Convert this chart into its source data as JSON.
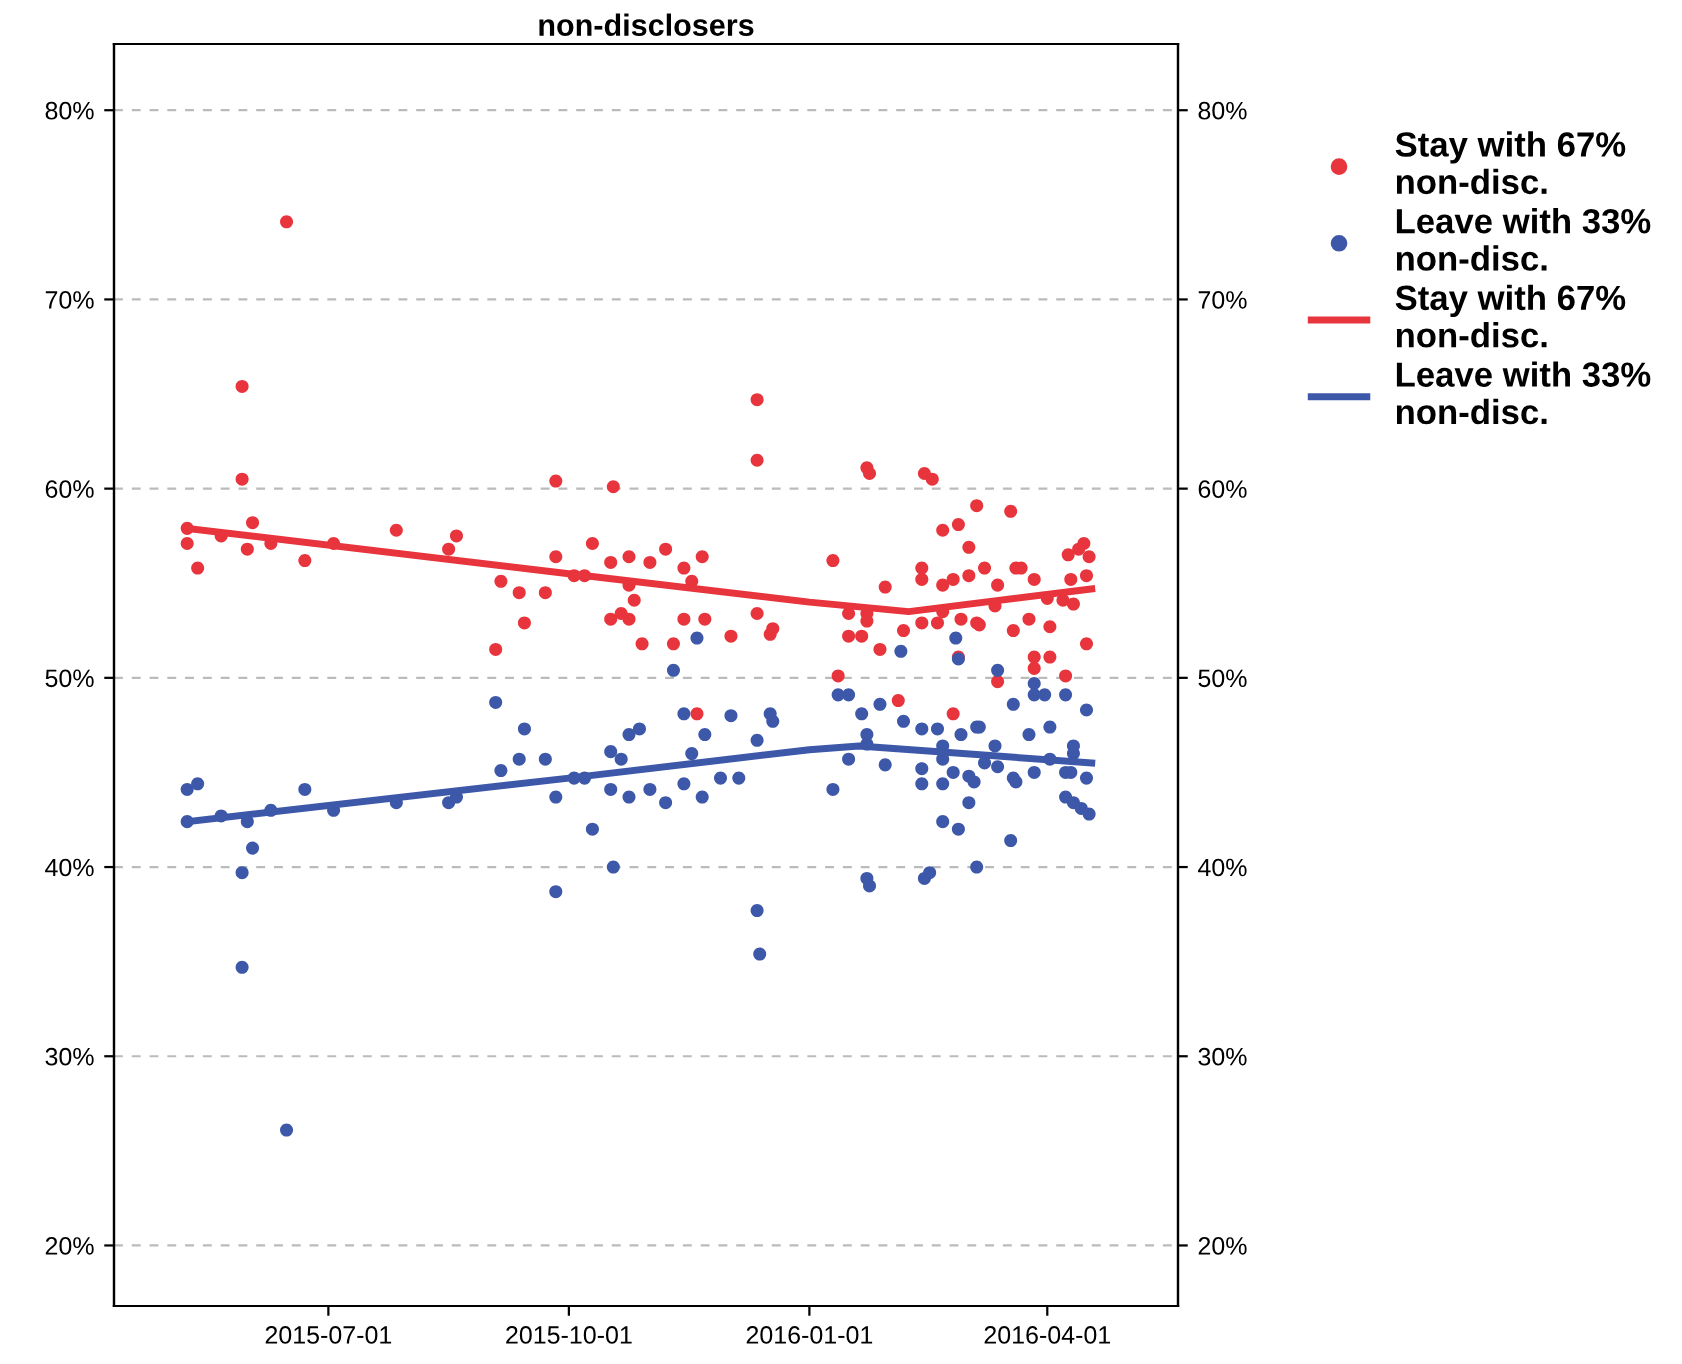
{
  "chart_data": {
    "type": "scatter",
    "title": "non-disclosers",
    "xlim": [
      "2015-04-10",
      "2016-05-21"
    ],
    "xticks": [
      {
        "value": "2015-07-01",
        "label": "2015-07-01"
      },
      {
        "value": "2015-10-01",
        "label": "2015-10-01"
      },
      {
        "value": "2016-01-01",
        "label": "2016-01-01"
      },
      {
        "value": "2016-04-01",
        "label": "2016-04-01"
      }
    ],
    "ylim": [
      16.8,
      83.5
    ],
    "yticks": [
      {
        "value": 20,
        "label": "20%"
      },
      {
        "value": 30,
        "label": "30%"
      },
      {
        "value": 40,
        "label": "40%"
      },
      {
        "value": 50,
        "label": "50%"
      },
      {
        "value": 60,
        "label": "60%"
      },
      {
        "value": 70,
        "label": "70%"
      },
      {
        "value": 80,
        "label": "80%"
      }
    ],
    "y2lim": [
      16.8,
      83.5
    ],
    "y2ticks": [
      {
        "value": 20,
        "label": "20%"
      },
      {
        "value": 30,
        "label": "30%"
      },
      {
        "value": 40,
        "label": "40%"
      },
      {
        "value": 50,
        "label": "50%"
      },
      {
        "value": 60,
        "label": "60%"
      },
      {
        "value": 70,
        "label": "70%"
      },
      {
        "value": 80,
        "label": "80%"
      }
    ],
    "grid": "y",
    "legend": "right",
    "marker": "circle",
    "series": [
      {
        "name": "Stay with 67%\nnon-disc.",
        "color": "#e8343c",
        "x": [
          "2015-06-15",
          "2015-05-29",
          "2015-05-29",
          "2015-05-08",
          "2015-05-08",
          "2015-05-12",
          "2015-05-21",
          "2015-06-02",
          "2015-05-31",
          "2015-06-09",
          "2015-06-22",
          "2015-07-03",
          "2015-07-27",
          "2015-08-16",
          "2015-08-19",
          "2015-09-26",
          "2015-10-18",
          "2015-12-12",
          "2015-12-12",
          "2015-09-05",
          "2015-09-12",
          "2015-09-14",
          "2015-09-03",
          "2015-09-22",
          "2015-09-26",
          "2015-10-03",
          "2015-10-07",
          "2015-10-10",
          "2015-10-17",
          "2015-10-24",
          "2015-10-24",
          "2015-10-26",
          "2015-10-17",
          "2015-10-21",
          "2015-10-24",
          "2015-10-29",
          "2015-11-01",
          "2015-11-07",
          "2015-11-14",
          "2015-11-17",
          "2015-11-21",
          "2015-11-14",
          "2015-11-22",
          "2015-11-10",
          "2015-12-02",
          "2015-12-12",
          "2015-12-17",
          "2015-12-18",
          "2015-11-19",
          "2016-01-23",
          "2016-01-24",
          "2016-02-14",
          "2016-02-17",
          "2016-01-10",
          "2016-03-05",
          "2016-03-18",
          "2016-02-21",
          "2016-02-27",
          "2016-03-02",
          "2016-02-13",
          "2016-02-13",
          "2016-01-30",
          "2016-02-21",
          "2016-02-25",
          "2016-03-02",
          "2016-03-08",
          "2016-03-13",
          "2016-03-20",
          "2016-03-22",
          "2016-03-27",
          "2016-01-16",
          "2016-01-23",
          "2016-01-23",
          "2016-01-16",
          "2016-01-21",
          "2016-01-28",
          "2016-02-06",
          "2016-02-13",
          "2016-02-19",
          "2016-02-21",
          "2016-02-28",
          "2016-03-05",
          "2016-03-06",
          "2016-03-12",
          "2016-03-19",
          "2016-03-25",
          "2016-04-02",
          "2016-04-07",
          "2016-04-09",
          "2016-04-13",
          "2016-04-15",
          "2016-04-17",
          "2016-04-10",
          "2016-04-11",
          "2016-04-01",
          "2016-04-16",
          "2016-04-16",
          "2016-04-02",
          "2016-03-27",
          "2016-03-27",
          "2016-01-12",
          "2016-03-13",
          "2016-04-08",
          "2016-02-04",
          "2016-02-25",
          "2016-02-27"
        ],
        "values": [
          74.1,
          65.4,
          60.5,
          57.9,
          57.1,
          55.8,
          57.5,
          58.2,
          56.8,
          57.1,
          56.2,
          57.1,
          57.8,
          56.8,
          57.5,
          60.4,
          60.1,
          64.7,
          61.5,
          55.1,
          54.5,
          52.9,
          51.5,
          54.5,
          56.4,
          55.4,
          55.4,
          57.1,
          56.1,
          56.4,
          54.9,
          54.1,
          53.1,
          53.4,
          53.1,
          51.8,
          56.1,
          56.8,
          55.8,
          55.1,
          56.4,
          53.1,
          53.1,
          51.8,
          52.2,
          53.4,
          52.3,
          52.6,
          48.1,
          61.1,
          60.8,
          60.8,
          60.5,
          56.2,
          59.1,
          58.8,
          57.8,
          58.1,
          56.9,
          55.8,
          55.2,
          54.8,
          54.9,
          55.2,
          55.4,
          55.8,
          54.9,
          55.8,
          55.8,
          55.2,
          53.4,
          53.4,
          53.0,
          52.2,
          52.2,
          51.5,
          52.5,
          52.9,
          52.9,
          53.5,
          53.1,
          52.9,
          52.8,
          53.8,
          52.5,
          53.1,
          52.7,
          54.1,
          56.5,
          56.8,
          57.1,
          56.4,
          55.2,
          53.9,
          54.2,
          55.4,
          51.8,
          51.1,
          51.1,
          50.5,
          50.1,
          49.8,
          50.1,
          48.8,
          48.1,
          51.1
        ]
      },
      {
        "name": "Leave with 33%\nnon-disc.",
        "color": "#3d57a9",
        "x": [
          "2015-05-08",
          "2015-05-12",
          "2015-05-08",
          "2015-05-21",
          "2015-05-31",
          "2015-06-02",
          "2015-05-29",
          "2015-05-29",
          "2015-06-15",
          "2015-06-09",
          "2015-06-22",
          "2015-07-03",
          "2015-07-27",
          "2015-08-16",
          "2015-08-19",
          "2015-09-03",
          "2015-09-14",
          "2015-09-05",
          "2015-09-12",
          "2015-09-22",
          "2015-09-26",
          "2015-09-26",
          "2015-10-03",
          "2015-10-07",
          "2015-10-10",
          "2015-10-17",
          "2015-10-21",
          "2015-10-24",
          "2015-10-28",
          "2015-10-17",
          "2015-10-24",
          "2015-10-18",
          "2015-11-01",
          "2015-11-07",
          "2015-11-14",
          "2015-11-21",
          "2015-11-17",
          "2015-11-14",
          "2015-11-22",
          "2015-11-10",
          "2015-11-19",
          "2015-11-28",
          "2015-12-05",
          "2015-12-02",
          "2015-12-12",
          "2015-12-17",
          "2015-12-18",
          "2015-12-12",
          "2015-12-13",
          "2016-02-26",
          "2016-02-27",
          "2016-02-05",
          "2016-03-13",
          "2016-01-12",
          "2016-01-16",
          "2016-01-21",
          "2016-01-28",
          "2016-02-06",
          "2016-01-23",
          "2016-01-23",
          "2016-01-16",
          "2016-01-30",
          "2016-01-10",
          "2016-01-23",
          "2016-01-24",
          "2016-02-13",
          "2016-02-19",
          "2016-02-28",
          "2016-03-05",
          "2016-03-06",
          "2016-02-21",
          "2016-02-21",
          "2016-02-13",
          "2016-02-13",
          "2016-02-21",
          "2016-02-25",
          "2016-03-02",
          "2016-03-04",
          "2016-03-08",
          "2016-03-12",
          "2016-03-13",
          "2016-03-19",
          "2016-03-20",
          "2016-02-21",
          "2016-02-27",
          "2016-03-02",
          "2016-03-05",
          "2016-02-14",
          "2016-02-16",
          "2016-03-18",
          "2016-03-19",
          "2016-03-25",
          "2016-03-27",
          "2016-03-27",
          "2016-03-27",
          "2016-03-31",
          "2016-04-02",
          "2016-04-02",
          "2016-04-08",
          "2016-04-11",
          "2016-04-11",
          "2016-04-08",
          "2016-04-10",
          "2016-04-16",
          "2016-04-16",
          "2016-04-08",
          "2016-04-11",
          "2016-04-14",
          "2016-04-17"
        ],
        "values": [
          44.1,
          44.4,
          42.4,
          42.7,
          42.4,
          41.0,
          39.7,
          34.7,
          26.1,
          43.0,
          44.1,
          43.0,
          43.4,
          43.4,
          43.7,
          48.7,
          47.3,
          45.1,
          45.7,
          45.7,
          43.7,
          38.7,
          44.7,
          44.7,
          42.0,
          46.1,
          45.7,
          47.0,
          47.3,
          44.1,
          43.7,
          40.0,
          44.1,
          43.4,
          44.4,
          43.7,
          46.0,
          48.1,
          47.0,
          50.4,
          52.1,
          44.7,
          44.7,
          48.0,
          46.7,
          48.1,
          47.7,
          37.7,
          35.4,
          52.1,
          51.0,
          51.4,
          50.4,
          49.1,
          49.1,
          48.1,
          48.6,
          47.7,
          47.0,
          46.5,
          45.7,
          45.4,
          44.1,
          39.4,
          39.0,
          47.3,
          47.3,
          47.0,
          47.4,
          47.4,
          46.4,
          45.7,
          45.2,
          44.4,
          44.4,
          45.0,
          44.8,
          44.5,
          45.5,
          46.4,
          45.3,
          44.7,
          44.5,
          42.4,
          42.0,
          43.4,
          40.0,
          39.4,
          39.7,
          41.4,
          48.6,
          47.0,
          45.0,
          49.7,
          49.1,
          49.1,
          47.4,
          45.7,
          49.1,
          46.4,
          46.0,
          45.0,
          45.0,
          48.3,
          44.7,
          43.7,
          43.4,
          43.1,
          42.8
        ]
      },
      {
        "name": "Stay with 67%\nnon-disc.",
        "type": "line",
        "color": "#e8343c",
        "marker": "none",
        "x": [
          "2015-05-08",
          "2015-10-01",
          "2016-01-01",
          "2016-02-08",
          "2016-04-18"
        ],
        "values": [
          57.9,
          55.5,
          54.0,
          53.5,
          54.7
        ]
      },
      {
        "name": "Leave with 33%\nnon-disc.",
        "type": "line",
        "color": "#3d57a9",
        "marker": "none",
        "x": [
          "2015-05-08",
          "2015-10-01",
          "2016-01-01",
          "2016-01-20",
          "2016-04-18"
        ],
        "values": [
          42.4,
          44.7,
          46.2,
          46.4,
          45.5
        ]
      }
    ]
  }
}
